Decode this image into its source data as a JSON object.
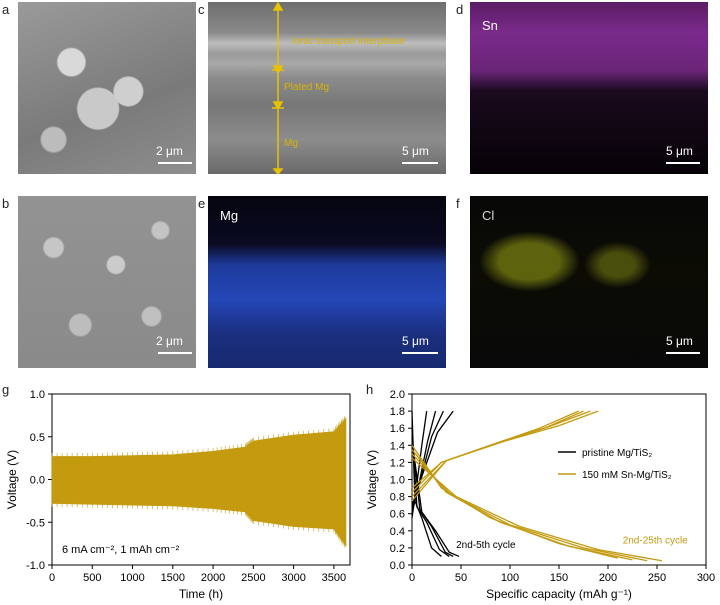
{
  "panels": {
    "a": {
      "label": "a",
      "scale": "2 μm"
    },
    "b": {
      "label": "b",
      "scale": "2 μm"
    },
    "c": {
      "label": "c",
      "scale": "5 μm",
      "annotations": [
        "Ionic transport interphase",
        "Plated Mg",
        "Mg"
      ]
    },
    "d": {
      "label": "d",
      "scale": "5 μm",
      "element": "Sn"
    },
    "e": {
      "label": "e",
      "scale": "5 μm",
      "element": "Mg"
    },
    "f": {
      "label": "f",
      "scale": "5 μm",
      "element": "Cl"
    },
    "g": {
      "label": "g"
    },
    "h": {
      "label": "h"
    }
  },
  "colors": {
    "gold": "#c49a0e",
    "black": "#000000",
    "annotation": "#d9b400"
  },
  "chart_data": [
    {
      "type": "line",
      "xlabel": "Time (h)",
      "ylabel": "Voltage (V)",
      "xlim": [
        0,
        3700
      ],
      "ylim": [
        -1.0,
        1.0
      ],
      "xticks": [
        0,
        500,
        1000,
        1500,
        2000,
        2500,
        3000,
        3500
      ],
      "yticks": [
        -1.0,
        -0.5,
        0.0,
        0.5,
        1.0
      ],
      "annotation": "6 mA cm⁻², 1 mAh cm⁻²",
      "series": [
        {
          "color": "#c49a0e",
          "envelope": [
            {
              "x": 0,
              "upper": 0.27,
              "lower": -0.28
            },
            {
              "x": 500,
              "upper": 0.27,
              "lower": -0.29
            },
            {
              "x": 1000,
              "upper": 0.28,
              "lower": -0.3
            },
            {
              "x": 1500,
              "upper": 0.29,
              "lower": -0.31
            },
            {
              "x": 2000,
              "upper": 0.33,
              "lower": -0.34
            },
            {
              "x": 2400,
              "upper": 0.38,
              "lower": -0.38
            },
            {
              "x": 2500,
              "upper": 0.45,
              "lower": -0.48
            },
            {
              "x": 3000,
              "upper": 0.52,
              "lower": -0.55
            },
            {
              "x": 3500,
              "upper": 0.56,
              "lower": -0.58
            },
            {
              "x": 3650,
              "upper": 0.72,
              "lower": -0.78
            }
          ]
        }
      ]
    },
    {
      "type": "line",
      "xlabel": "Specific capacity (mAh g⁻¹)",
      "ylabel": "Voltage (V)",
      "xlim": [
        0,
        300
      ],
      "ylim": [
        0.0,
        2.0
      ],
      "xticks": [
        0,
        50,
        100,
        150,
        200,
        250,
        300
      ],
      "yticks": [
        0.0,
        0.2,
        0.4,
        0.6,
        0.8,
        1.0,
        1.2,
        1.4,
        1.6,
        1.8,
        2.0
      ],
      "legend": [
        "pristine Mg/TiS₂",
        "150 mM Sn-Mg/TiS₂"
      ],
      "cycle_labels": [
        "2nd-5th cycle",
        "2nd-25th cycle"
      ],
      "series": [
        {
          "name": "pristine Mg/TiS₂",
          "color": "#000000",
          "curves": [
            {
              "charge": [
                [
                  0,
                  0.55
                ],
                [
                  5,
                  0.95
                ],
                [
                  10,
                  1.4
                ],
                [
                  15,
                  1.8
                ]
              ],
              "discharge": [
                [
                  0,
                  1.8
                ],
                [
                  3,
                  0.75
                ],
                [
                  10,
                  0.55
                ],
                [
                  20,
                  0.2
                ],
                [
                  30,
                  0.1
                ]
              ]
            },
            {
              "charge": [
                [
                  0,
                  0.6
                ],
                [
                  8,
                  1.0
                ],
                [
                  16,
                  1.45
                ],
                [
                  24,
                  1.8
                ]
              ],
              "discharge": [
                [
                  0,
                  1.6
                ],
                [
                  5,
                  0.68
                ],
                [
                  15,
                  0.5
                ],
                [
                  28,
                  0.18
                ],
                [
                  38,
                  0.1
                ]
              ]
            },
            {
              "charge": [
                [
                  0,
                  0.65
                ],
                [
                  10,
                  1.05
                ],
                [
                  20,
                  1.5
                ],
                [
                  32,
                  1.8
                ]
              ],
              "discharge": [
                [
                  0,
                  1.5
                ],
                [
                  8,
                  0.65
                ],
                [
                  20,
                  0.45
                ],
                [
                  34,
                  0.15
                ],
                [
                  42,
                  0.1
                ]
              ]
            },
            {
              "charge": [
                [
                  0,
                  0.7
                ],
                [
                  12,
                  1.1
                ],
                [
                  26,
                  1.55
                ],
                [
                  42,
                  1.8
                ]
              ],
              "discharge": [
                [
                  0,
                  1.45
                ],
                [
                  10,
                  0.62
                ],
                [
                  24,
                  0.4
                ],
                [
                  38,
                  0.15
                ],
                [
                  48,
                  0.1
                ]
              ]
            }
          ]
        },
        {
          "name": "150 mM Sn-Mg/TiS₂",
          "color": "#c49a0e",
          "curves": [
            {
              "charge": [
                [
                  0,
                  0.9
                ],
                [
                  30,
                  1.2
                ],
                [
                  80,
                  1.4
                ],
                [
                  130,
                  1.6
                ],
                [
                  170,
                  1.8
                ]
              ],
              "discharge": [
                [
                  0,
                  1.4
                ],
                [
                  30,
                  0.9
                ],
                [
                  80,
                  0.55
                ],
                [
                  150,
                  0.25
                ],
                [
                  210,
                  0.08
                ]
              ]
            },
            {
              "charge": [
                [
                  0,
                  0.85
                ],
                [
                  30,
                  1.2
                ],
                [
                  85,
                  1.42
                ],
                [
                  135,
                  1.6
                ],
                [
                  175,
                  1.8
                ]
              ],
              "discharge": [
                [
                  0,
                  1.35
                ],
                [
                  35,
                  0.85
                ],
                [
                  90,
                  0.5
                ],
                [
                  160,
                  0.22
                ],
                [
                  225,
                  0.06
                ]
              ]
            },
            {
              "charge": [
                [
                  0,
                  0.8
                ],
                [
                  35,
                  1.22
                ],
                [
                  90,
                  1.44
                ],
                [
                  140,
                  1.62
                ],
                [
                  182,
                  1.8
                ]
              ],
              "discharge": [
                [
                  0,
                  1.3
                ],
                [
                  40,
                  0.82
                ],
                [
                  100,
                  0.47
                ],
                [
                  175,
                  0.2
                ],
                [
                  240,
                  0.05
                ]
              ]
            },
            {
              "charge": [
                [
                  0,
                  0.75
                ],
                [
                  35,
                  1.22
                ],
                [
                  95,
                  1.45
                ],
                [
                  150,
                  1.63
                ],
                [
                  190,
                  1.8
                ]
              ],
              "discharge": [
                [
                  0,
                  1.25
                ],
                [
                  45,
                  0.8
                ],
                [
                  110,
                  0.45
                ],
                [
                  190,
                  0.18
                ],
                [
                  255,
                  0.05
                ]
              ]
            }
          ]
        }
      ]
    }
  ]
}
